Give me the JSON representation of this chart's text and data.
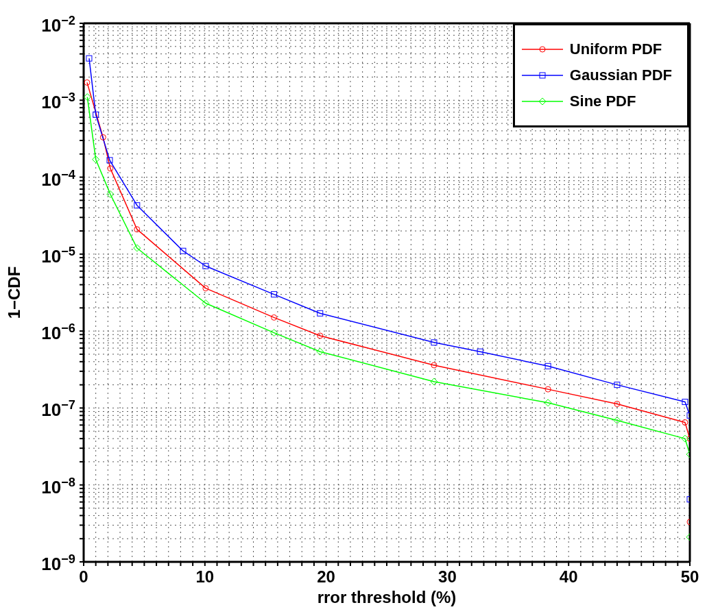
{
  "chart_data": {
    "type": "line",
    "xlabel": "rror threshold (%)",
    "ylabel": "1−CDF",
    "log": "y",
    "grid": true,
    "legend": "top right",
    "line_style": "solid",
    "xlim": [
      0,
      50
    ],
    "xticks": [
      0,
      {
        "value": 1,
        "label": null
      },
      {
        "value": 2,
        "label": null
      },
      {
        "value": 3,
        "label": null
      },
      {
        "value": 4,
        "label": null
      },
      {
        "value": 5,
        "label": null
      },
      {
        "value": 6,
        "label": null
      },
      {
        "value": 7,
        "label": null
      },
      {
        "value": 8,
        "label": null
      },
      {
        "value": 9,
        "label": null
      },
      10,
      {
        "value": 11,
        "label": null
      },
      {
        "value": 12,
        "label": null
      },
      {
        "value": 13,
        "label": null
      },
      {
        "value": 14,
        "label": null
      },
      {
        "value": 15,
        "label": null
      },
      {
        "value": 16,
        "label": null
      },
      {
        "value": 17,
        "label": null
      },
      {
        "value": 18,
        "label": null
      },
      {
        "value": 19,
        "label": null
      },
      20,
      {
        "value": 21,
        "label": null
      },
      {
        "value": 22,
        "label": null
      },
      {
        "value": 23,
        "label": null
      },
      {
        "value": 24,
        "label": null
      },
      {
        "value": 25,
        "label": null
      },
      {
        "value": 26,
        "label": null
      },
      {
        "value": 27,
        "label": null
      },
      {
        "value": 28,
        "label": null
      },
      {
        "value": 29,
        "label": null
      },
      30,
      {
        "value": 31,
        "label": null
      },
      {
        "value": 32,
        "label": null
      },
      {
        "value": 33,
        "label": null
      },
      {
        "value": 34,
        "label": null
      },
      {
        "value": 35,
        "label": null
      },
      {
        "value": 36,
        "label": null
      },
      {
        "value": 37,
        "label": null
      },
      {
        "value": 38,
        "label": null
      },
      {
        "value": 39,
        "label": null
      },
      40,
      {
        "value": 41,
        "label": null
      },
      {
        "value": 42,
        "label": null
      },
      {
        "value": 43,
        "label": null
      },
      {
        "value": 44,
        "label": null
      },
      {
        "value": 45,
        "label": null
      },
      {
        "value": 46,
        "label": null
      },
      {
        "value": 47,
        "label": null
      },
      {
        "value": 48,
        "label": null
      },
      {
        "value": 49,
        "label": null
      },
      50
    ],
    "ylim": [
      1e-09,
      0.01
    ],
    "yticks": [
      {
        "value": 1e-09,
        "label": "10$^{−9}$"
      },
      {
        "value": 2e-09,
        "label": null
      },
      {
        "value": 3e-09,
        "label": null
      },
      {
        "value": 4e-09,
        "label": null
      },
      {
        "value": 5e-09,
        "label": null
      },
      {
        "value": 6e-09,
        "label": null
      },
      {
        "value": 7e-09,
        "label": null
      },
      {
        "value": 8e-09,
        "label": null
      },
      {
        "value": 9e-09,
        "label": null
      },
      {
        "value": 1e-08,
        "label": "10$^{−8}$"
      },
      {
        "value": 2e-08,
        "label": null
      },
      {
        "value": 3e-08,
        "label": null
      },
      {
        "value": 4e-08,
        "label": null
      },
      {
        "value": 5e-08,
        "label": null
      },
      {
        "value": 6e-08,
        "label": null
      },
      {
        "value": 7e-08,
        "label": null
      },
      {
        "value": 8e-08,
        "label": null
      },
      {
        "value": 9e-08,
        "label": null
      },
      {
        "value": 1e-07,
        "label": "10$^{−7}$"
      },
      {
        "value": 2e-07,
        "label": null
      },
      {
        "value": 3e-07,
        "label": null
      },
      {
        "value": 4e-07,
        "label": null
      },
      {
        "value": 5e-07,
        "label": null
      },
      {
        "value": 6e-07,
        "label": null
      },
      {
        "value": 7e-07,
        "label": null
      },
      {
        "value": 8e-07,
        "label": null
      },
      {
        "value": 9e-07,
        "label": null
      },
      {
        "value": 1e-06,
        "label": "10$^{−6}$"
      },
      {
        "value": 2e-06,
        "label": null
      },
      {
        "value": 3e-06,
        "label": null
      },
      {
        "value": 4e-06,
        "label": null
      },
      {
        "value": 5e-06,
        "label": null
      },
      {
        "value": 6e-06,
        "label": null
      },
      {
        "value": 7e-06,
        "label": null
      },
      {
        "value": 8e-06,
        "label": null
      },
      {
        "value": 9e-06,
        "label": null
      },
      {
        "value": 1e-05,
        "label": "10$^{−5}$"
      },
      {
        "value": 2e-05,
        "label": null
      },
      {
        "value": 3e-05,
        "label": null
      },
      {
        "value": 4e-05,
        "label": null
      },
      {
        "value": 5e-05,
        "label": null
      },
      {
        "value": 6e-05,
        "label": null
      },
      {
        "value": 7e-05,
        "label": null
      },
      {
        "value": 8e-05,
        "label": null
      },
      {
        "value": 9e-05,
        "label": null
      },
      {
        "value": 0.0001,
        "label": "10$^{−4}$"
      },
      {
        "value": 0.0002,
        "label": null
      },
      {
        "value": 0.0003,
        "label": null
      },
      {
        "value": 0.0004,
        "label": null
      },
      {
        "value": 0.0005,
        "label": null
      },
      {
        "value": 0.0006,
        "label": null
      },
      {
        "value": 0.0007,
        "label": null
      },
      {
        "value": 0.0008,
        "label": null
      },
      {
        "value": 0.0009,
        "label": null
      },
      {
        "value": 0.001,
        "label": "10$^{−3}$"
      },
      {
        "value": 0.002,
        "label": null
      },
      {
        "value": 0.003,
        "label": null
      },
      {
        "value": 0.004,
        "label": null
      },
      {
        "value": 0.005,
        "label": null
      },
      {
        "value": 0.006,
        "label": null
      },
      {
        "value": 0.007,
        "label": null
      },
      {
        "value": 0.008,
        "label": null
      },
      {
        "value": 0.009,
        "label": null
      },
      {
        "value": 0.01,
        "label": "10$^{−2}$"
      }
    ],
    "series": [
      {
        "name": "Uniform PDF",
        "color": "#ff0000",
        "marker": "circle",
        "x": [
          0.28,
          1.6,
          2.2,
          4.4,
          10.06,
          15.7,
          19.5,
          28.9,
          38.3,
          44,
          49.6,
          50,
          50
        ],
        "values": [
          0.0017,
          0.00033,
          0.00013,
          2.1e-05,
          3.6e-06,
          1.5e-06,
          8.7e-07,
          3.6e-07,
          1.75e-07,
          1.13e-07,
          6.5e-08,
          4e-08,
          3.3e-09
        ]
      },
      {
        "name": "Gaussian PDF",
        "color": "#0000ff",
        "marker": "square",
        "x": [
          0.45,
          1.0,
          2.15,
          4.4,
          8.2,
          10.06,
          15.7,
          19.5,
          28.9,
          32.7,
          38.3,
          44,
          49.6,
          50,
          50
        ],
        "values": [
          0.0035,
          0.00065,
          0.000166,
          4.3e-05,
          1.1e-05,
          7e-06,
          3e-06,
          1.7e-06,
          7.1e-07,
          5.4e-07,
          3.5e-07,
          2e-07,
          1.2e-07,
          8e-08,
          6.5e-09
        ]
      },
      {
        "name": "Sine PDF",
        "color": "#00ff00",
        "marker": "diamond",
        "x": [
          0.3,
          1.0,
          2.2,
          4.4,
          10.06,
          15.7,
          19.5,
          28.9,
          38.3,
          44,
          49.6,
          50,
          50
        ],
        "values": [
          0.0011,
          0.00017,
          6e-05,
          1.2e-05,
          2.3e-06,
          9.5e-07,
          5.4e-07,
          2.2e-07,
          1.17e-07,
          6.9e-08,
          4e-08,
          2.5e-08,
          2.1e-09
        ]
      }
    ]
  }
}
